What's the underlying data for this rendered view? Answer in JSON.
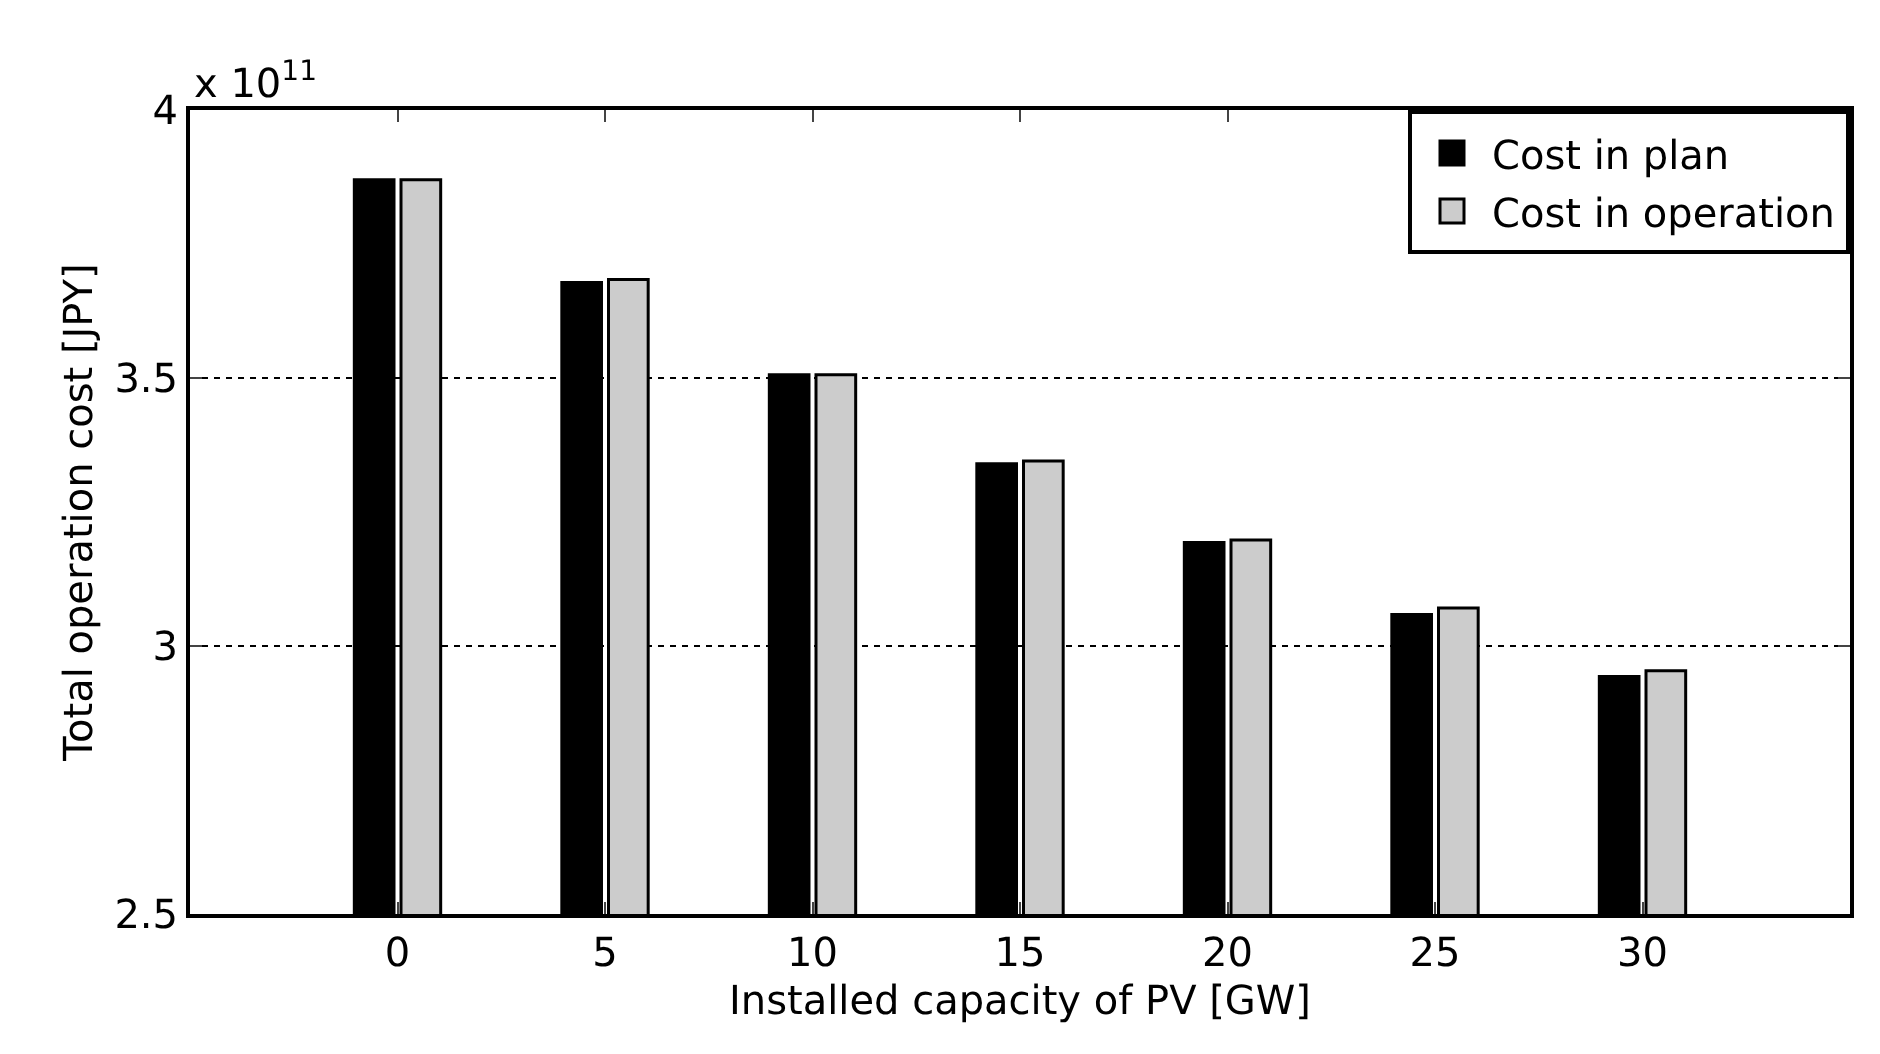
{
  "chart_data": {
    "type": "bar",
    "xlabel": "Installed capacity of PV [GW]",
    "ylabel": "Total operation cost [JPY]",
    "annotations": [
      "x 10$^{11}$"
    ],
    "x": [
      0,
      5,
      10,
      15,
      20,
      25,
      30
    ],
    "series": [
      {
        "name": "Cost in plan",
        "color": "#000000",
        "values": [
          3.87,
          3.678,
          3.506,
          3.34,
          3.193,
          3.059,
          2.943
        ]
      },
      {
        "name": "Cost in operation",
        "color": "#cccccc",
        "values": [
          3.87,
          3.684,
          3.506,
          3.345,
          3.198,
          3.071,
          2.954
        ]
      }
    ],
    "xlim": [
      -5,
      35
    ],
    "xticks": [
      0,
      5,
      10,
      15,
      20,
      25,
      30
    ],
    "ylim": [
      2.5,
      4
    ],
    "yticks": [
      2.5,
      3,
      3.5,
      4
    ],
    "grid": "y",
    "legend": "top right"
  }
}
